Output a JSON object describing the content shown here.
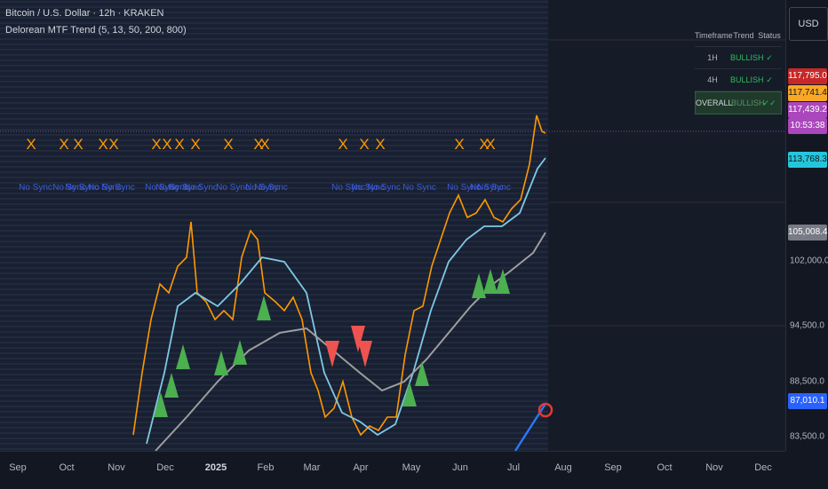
{
  "legend": {
    "symbol_title": "Bitcoin / U.S. Dollar · 12h · KRAKEN",
    "indicator": "Delorean MTF Trend (5, 13, 50, 200, 800)"
  },
  "currency_button": "USD",
  "mtf_table": {
    "headers": [
      "Timeframe",
      "Trend",
      "Status"
    ],
    "rows": [
      {
        "timeframe": "1H",
        "trend": "BULLISH",
        "status": "✓"
      },
      {
        "timeframe": "4H",
        "trend": "BULLISH",
        "status": "✓"
      },
      {
        "timeframe": "OVERALL",
        "trend": "BULLISH",
        "status": "✓✓"
      }
    ]
  },
  "price_axis": {
    "labels": [
      "102,000.0",
      "94,500.0",
      "88,500.0",
      "83,500.0"
    ],
    "badges": [
      {
        "text": "117,795.0",
        "color": "#c62828"
      },
      {
        "text": "117,741.4",
        "color": "#f9a825"
      },
      {
        "text": "117,439.2",
        "color": "#ab47bc"
      },
      {
        "text": "10:53:38",
        "color": "#ab47bc"
      },
      {
        "text": "113,768.3",
        "color": "#26c6da"
      },
      {
        "text": "105,008.4",
        "color": "#787b86"
      },
      {
        "text": "87,010.1",
        "color": "#2962ff"
      }
    ]
  },
  "time_axis": {
    "labels": [
      "Sep",
      "Oct",
      "Nov",
      "Dec",
      "2025",
      "Feb",
      "Mar",
      "Apr",
      "May",
      "Jun",
      "Jul",
      "Aug",
      "Sep",
      "Oct",
      "Nov",
      "Dec"
    ]
  },
  "markers": {
    "x_symbol": "X",
    "no_sync_text": "No Sync"
  },
  "colors": {
    "background": "#131722",
    "price_line": "#ff9800",
    "ema_fast": "#7ec8e3",
    "ema_slow": "#9e9e9e",
    "bull_triangle": "#4caf50",
    "bear_triangle": "#ef5350",
    "x_marker": "#ff9800",
    "no_sync": "#3a5bd9",
    "trendline": "#2979ff"
  }
}
